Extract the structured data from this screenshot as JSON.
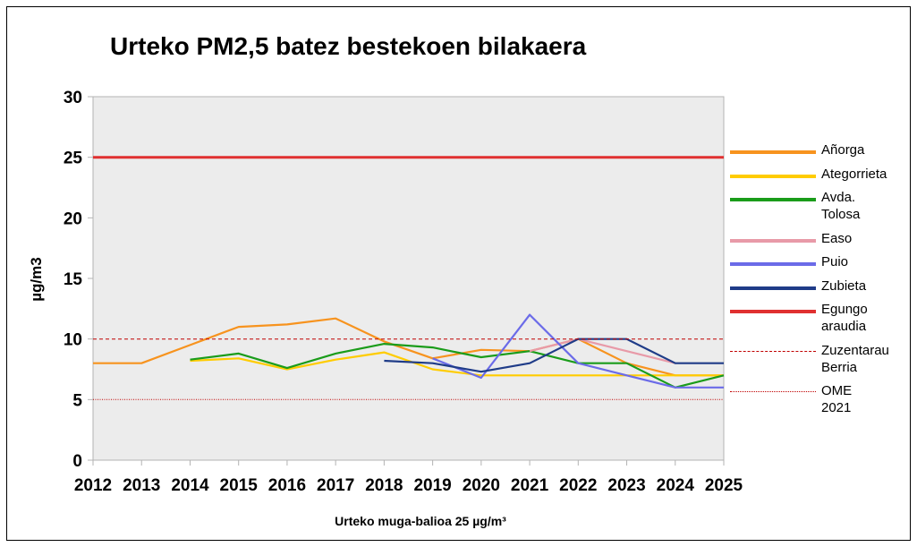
{
  "chart_data": {
    "type": "line",
    "title": "Urteko PM2,5 batez bestekoen bilakaera",
    "xlabel": "Urteko muga-balioa 25 µg/m³",
    "ylabel": "µg/m3",
    "ylim": [
      0,
      30
    ],
    "yticks": [
      0,
      5,
      10,
      15,
      20,
      25,
      30
    ],
    "x": [
      "2012",
      "2013",
      "2014",
      "2015",
      "2016",
      "2017",
      "2018",
      "2019",
      "2020",
      "2021",
      "2022",
      "2023",
      "2024",
      "2025"
    ],
    "grid": false,
    "legend_position": "right",
    "series": [
      {
        "name": "Añorga",
        "color": "#f7931e",
        "style": "solid",
        "values": [
          8,
          8,
          9.5,
          11,
          11.2,
          11.7,
          9.8,
          8.4,
          9.1,
          9,
          10,
          8,
          7,
          7
        ]
      },
      {
        "name": "Ategorrieta",
        "color": "#ffcc00",
        "style": "solid",
        "values": [
          null,
          null,
          8.2,
          8.4,
          7.5,
          8.3,
          8.9,
          7.5,
          7,
          7,
          7,
          7,
          7,
          7
        ]
      },
      {
        "name": "Avda.\nTolosa",
        "color": "#1a9c1a",
        "style": "solid",
        "values": [
          null,
          null,
          8.3,
          8.8,
          7.6,
          8.8,
          9.6,
          9.3,
          8.5,
          9,
          8,
          8,
          6,
          7
        ]
      },
      {
        "name": "Easo",
        "color": "#e89aa8",
        "style": "solid",
        "values": [
          null,
          null,
          null,
          null,
          null,
          null,
          null,
          null,
          null,
          9,
          10,
          9,
          8,
          null
        ]
      },
      {
        "name": "Puio",
        "color": "#6b6be8",
        "style": "solid",
        "values": [
          null,
          null,
          null,
          null,
          null,
          null,
          null,
          8.4,
          6.8,
          12,
          8,
          7,
          6,
          6
        ]
      },
      {
        "name": "Zubieta",
        "color": "#1f3c88",
        "style": "solid",
        "values": [
          null,
          null,
          null,
          null,
          null,
          null,
          8.2,
          8,
          7.3,
          8,
          10,
          10,
          8,
          8
        ]
      },
      {
        "name": "Egungo\naraudia",
        "color": "#e03030",
        "style": "solid",
        "values": [
          25,
          25,
          25,
          25,
          25,
          25,
          25,
          25,
          25,
          25,
          25,
          25,
          25,
          25
        ]
      },
      {
        "name": "Zuzentarau\nBerria",
        "color": "#c00000",
        "style": "dashed",
        "values": [
          10,
          10,
          10,
          10,
          10,
          10,
          10,
          10,
          10,
          10,
          10,
          10,
          10,
          10
        ]
      },
      {
        "name": "OME 2021",
        "color": "#c00000",
        "style": "dotted",
        "values": [
          5,
          5,
          5,
          5,
          5,
          5,
          5,
          5,
          5,
          5,
          5,
          5,
          5,
          5
        ]
      }
    ]
  }
}
